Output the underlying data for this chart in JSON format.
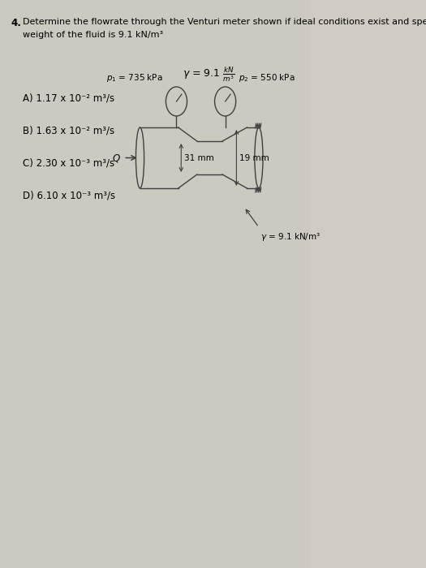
{
  "bg_color": "#c8c4bc",
  "fig_color": "#d0ccc4",
  "title_number": "4.",
  "title_line1": "Determine the flowrate through the Venturi meter shown if ideal conditions exist and specific",
  "title_line2": "weight of the fluid is 9.1 kN/m³",
  "options": [
    "A) 1.17 x 10⁻² m³/s",
    "B) 1.63 x 10⁻² m³/s",
    "C) 2.30 x 10⁻³ m³/s",
    "D) 6.10 x 10⁻³ m³/s"
  ],
  "p1_label": "$p_1$ = 735 kPa",
  "p2_label": "$p_2$ = 550 kPa",
  "d1_label": "31 mm",
  "d2_label": "19 mm",
  "gamma_top": "$\\gamma$ = 9.1 $\\frac{kN}{m^3}$",
  "gamma_bottom": "$\\gamma$ = 9.1 kN/m³",
  "Q_label": "Q"
}
